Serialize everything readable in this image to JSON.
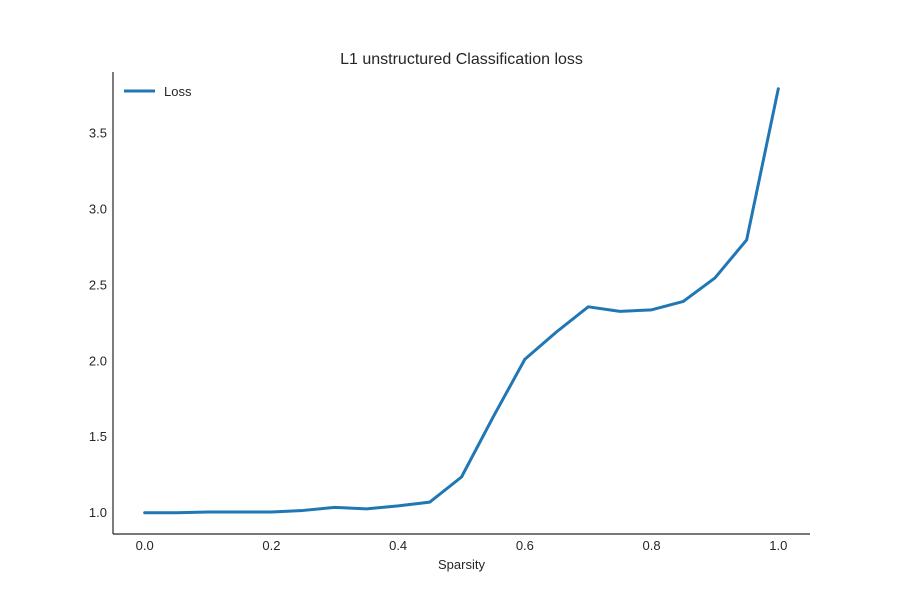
{
  "chart_data": {
    "type": "line",
    "title": "L1 unstructured Classification loss",
    "xlabel": "Sparsity",
    "ylabel": "",
    "xlim": [
      -0.05,
      1.05
    ],
    "ylim": [
      0.86,
      3.9
    ],
    "xticks": [
      0.0,
      0.2,
      0.4,
      0.6,
      0.8,
      1.0
    ],
    "xtick_labels": [
      "0.0",
      "0.2",
      "0.4",
      "0.6",
      "0.8",
      "1.0"
    ],
    "yticks": [
      1.0,
      1.5,
      2.0,
      2.5,
      3.0,
      3.5
    ],
    "ytick_labels": [
      "1.0",
      "1.5",
      "2.0",
      "2.5",
      "3.0",
      "3.5"
    ],
    "grid": false,
    "legend": "top-left",
    "series": [
      {
        "name": "Loss",
        "color": "#1f77b4",
        "x": [
          0.0,
          0.05,
          0.1,
          0.15,
          0.2,
          0.25,
          0.3,
          0.35,
          0.4,
          0.45,
          0.5,
          0.55,
          0.6,
          0.65,
          0.7,
          0.75,
          0.8,
          0.85,
          0.9,
          0.95,
          1.0
        ],
        "y": [
          1.0,
          1.0,
          1.005,
          1.005,
          1.005,
          1.015,
          1.035,
          1.025,
          1.045,
          1.07,
          1.235,
          1.63,
          2.01,
          2.19,
          2.355,
          2.325,
          2.335,
          2.39,
          2.545,
          2.795,
          3.79
        ]
      }
    ]
  }
}
